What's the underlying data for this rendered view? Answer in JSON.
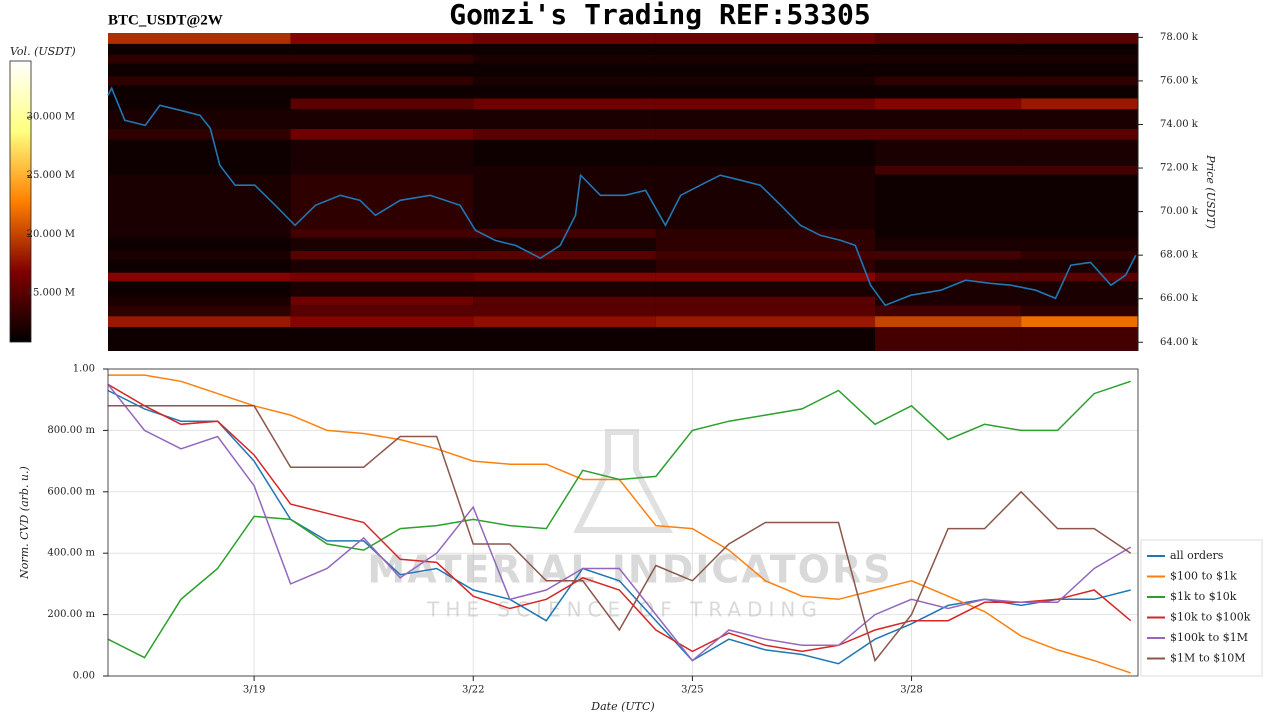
{
  "chart_data": [
    {
      "type": "heatmap",
      "title": "Gomzi's Trading REF:53305",
      "subtitle": "BTC_USDT@2W",
      "colormap": "afmhot",
      "colorbar_label": "Vol. (USDT)",
      "clim": [
        10800000,
        34800000
      ],
      "cticks": [
        {
          "value": 15000000,
          "label": "15.000 M"
        },
        {
          "value": 20000000,
          "label": "20.000 M"
        },
        {
          "value": 25000000,
          "label": "25.000 M"
        },
        {
          "value": 30000000,
          "label": "30.000 M"
        }
      ],
      "y_label": "Price (USDT)",
      "ylim": [
        63600,
        78200
      ],
      "yticks": [
        {
          "value": 64000,
          "label": "64.00 k"
        },
        {
          "value": 66000,
          "label": "66.00 k"
        },
        {
          "value": 68000,
          "label": "68.00 k"
        },
        {
          "value": 70000,
          "label": "70.00 k"
        },
        {
          "value": 72000,
          "label": "72.00 k"
        },
        {
          "value": 74000,
          "label": "74.00 k"
        },
        {
          "value": 76000,
          "label": "76.00 k"
        },
        {
          "value": 78000,
          "label": "78.00 k"
        }
      ],
      "xlim": [
        17,
        31.1
      ],
      "x_bins": [
        17,
        19.5,
        22,
        24.5,
        27.5,
        29.5,
        31.1
      ],
      "y_bins": [
        63600,
        64700,
        65200,
        65700,
        66100,
        66800,
        67200,
        67800,
        68200,
        68800,
        69200,
        71700,
        72100,
        73300,
        73800,
        74700,
        75200,
        75800,
        76200,
        76800,
        77200,
        77700,
        78200
      ],
      "values": [
        [
          11500000,
          11500000,
          11500000,
          11500000,
          14000000,
          14000000
        ],
        [
          18000000,
          17000000,
          17500000,
          18000000,
          20000000,
          22000000
        ],
        [
          13000000,
          15000000,
          15000000,
          15000000,
          14000000,
          13000000
        ],
        [
          12000000,
          16000000,
          15000000,
          15000000,
          12000000,
          12000000
        ],
        [
          11500000,
          12000000,
          12000000,
          12000000,
          12000000,
          12000000
        ],
        [
          17000000,
          16500000,
          17000000,
          17000000,
          15000000,
          15000000
        ],
        [
          11500000,
          12000000,
          12000000,
          13000000,
          12000000,
          12000000
        ],
        [
          12000000,
          15000000,
          15000000,
          14000000,
          14000000,
          13000000
        ],
        [
          11500000,
          12000000,
          12000000,
          13000000,
          12000000,
          12000000
        ],
        [
          12000000,
          14000000,
          14000000,
          13000000,
          11500000,
          11500000
        ],
        [
          12000000,
          13000000,
          12000000,
          12000000,
          11500000,
          11500000
        ],
        [
          11500000,
          12000000,
          12000000,
          12000000,
          14000000,
          14000000
        ],
        [
          11500000,
          12000000,
          11500000,
          11500000,
          12000000,
          12000000
        ],
        [
          13000000,
          16000000,
          15000000,
          15000000,
          15000000,
          15000000
        ],
        [
          12000000,
          12000000,
          12000000,
          12000000,
          12000000,
          12000000
        ],
        [
          11500000,
          15000000,
          16000000,
          16000000,
          17000000,
          18000000
        ],
        [
          11500000,
          11500000,
          11500000,
          11500000,
          11500000,
          11500000
        ],
        [
          13000000,
          13000000,
          12000000,
          12000000,
          13000000,
          13000000
        ],
        [
          11500000,
          11500000,
          11500000,
          11500000,
          11500000,
          11500000
        ],
        [
          13000000,
          13000000,
          12000000,
          12000000,
          12000000,
          12000000
        ],
        [
          11500000,
          11500000,
          11500000,
          11500000,
          11500000,
          11500000
        ],
        [
          19000000,
          17000000,
          16000000,
          16000000,
          15000000,
          15000000
        ]
      ],
      "price": {
        "color": "#1f77b4",
        "x": [
          17.0,
          17.05,
          17.23,
          17.51,
          17.71,
          17.99,
          18.26,
          18.4,
          18.53,
          18.74,
          19.01,
          19.29,
          19.56,
          19.84,
          20.18,
          20.45,
          20.66,
          21.0,
          21.41,
          21.82,
          22.03,
          22.3,
          22.58,
          22.92,
          23.19,
          23.4,
          23.47,
          23.74,
          24.08,
          24.36,
          24.63,
          24.84,
          25.11,
          25.38,
          25.66,
          25.93,
          26.21,
          26.48,
          26.75,
          27.03,
          27.23,
          27.44,
          27.64,
          27.99,
          28.4,
          28.74,
          29.08,
          29.36,
          29.7,
          29.97,
          30.18,
          30.45,
          30.73,
          30.93,
          31.07
        ],
        "values": [
          75340,
          75660,
          74190,
          73960,
          74880,
          74650,
          74420,
          73820,
          72130,
          71210,
          71210,
          70290,
          69370,
          70290,
          70750,
          70520,
          69830,
          70520,
          70750,
          70290,
          69140,
          68680,
          68450,
          67860,
          68450,
          69830,
          71670,
          70750,
          70750,
          70980,
          69370,
          70750,
          71210,
          71670,
          71440,
          71210,
          70290,
          69370,
          68910,
          68680,
          68450,
          66620,
          65700,
          66160,
          66390,
          66850,
          66710,
          66620,
          66390,
          66020,
          67540,
          67670,
          66620,
          67080,
          68000
        ]
      }
    },
    {
      "type": "line",
      "xlabel": "Date (UTC)",
      "ylabel": "Norm. CVD (arb. u.)",
      "grid": true,
      "legend": "right",
      "annotations": [
        "MATERIAL INDICATORS",
        "THE SCIENCE OF TRADING"
      ],
      "xlim": [
        17,
        31.1
      ],
      "xticks": [
        {
          "value": 19,
          "label": "3/19"
        },
        {
          "value": 22,
          "label": "3/22"
        },
        {
          "value": 25,
          "label": "3/25"
        },
        {
          "value": 28,
          "label": "3/28"
        }
      ],
      "ylim": [
        0,
        1
      ],
      "yticks": [
        {
          "value": 0,
          "label": "0.00"
        },
        {
          "value": 0.2,
          "label": "200.00 m"
        },
        {
          "value": 0.4,
          "label": "400.00 m"
        },
        {
          "value": 0.6,
          "label": "600.00 m"
        },
        {
          "value": 0.8,
          "label": "800.00 m"
        },
        {
          "value": 1,
          "label": "1.00"
        }
      ],
      "x": [
        17,
        17.5,
        18,
        18.5,
        19,
        19.5,
        20,
        20.5,
        21,
        21.5,
        22,
        22.5,
        23,
        23.5,
        24,
        24.5,
        25,
        25.5,
        26,
        26.5,
        27,
        27.5,
        28,
        28.5,
        29,
        29.5,
        30,
        30.5,
        31
      ],
      "series": [
        {
          "name": "all orders",
          "color": "#1f77b4",
          "values": [
            0.93,
            0.87,
            0.83,
            0.83,
            0.7,
            0.51,
            0.44,
            0.44,
            0.33,
            0.35,
            0.28,
            0.25,
            0.18,
            0.35,
            0.31,
            0.18,
            0.05,
            0.12,
            0.085,
            0.07,
            0.04,
            0.12,
            0.17,
            0.23,
            0.25,
            0.23,
            0.25,
            0.25,
            0.28
          ]
        },
        {
          "name": "$100 to $1k",
          "color": "#ff7f0e",
          "values": [
            0.98,
            0.98,
            0.96,
            0.92,
            0.88,
            0.85,
            0.8,
            0.79,
            0.77,
            0.74,
            0.7,
            0.69,
            0.69,
            0.64,
            0.64,
            0.49,
            0.48,
            0.41,
            0.31,
            0.26,
            0.25,
            0.28,
            0.31,
            0.26,
            0.21,
            0.13,
            0.085,
            0.05,
            0.01
          ]
        },
        {
          "name": "$1k to $10k",
          "color": "#2ca02c",
          "values": [
            0.12,
            0.06,
            0.25,
            0.35,
            0.52,
            0.51,
            0.43,
            0.41,
            0.48,
            0.49,
            0.51,
            0.49,
            0.48,
            0.67,
            0.64,
            0.65,
            0.8,
            0.83,
            0.85,
            0.87,
            0.93,
            0.82,
            0.88,
            0.77,
            0.82,
            0.8,
            0.8,
            0.92,
            0.96
          ]
        },
        {
          "name": "$10k to $100k",
          "color": "#d62728",
          "values": [
            0.95,
            0.88,
            0.82,
            0.83,
            0.72,
            0.56,
            0.53,
            0.5,
            0.38,
            0.37,
            0.26,
            0.22,
            0.25,
            0.32,
            0.28,
            0.15,
            0.08,
            0.14,
            0.1,
            0.08,
            0.1,
            0.15,
            0.18,
            0.18,
            0.24,
            0.24,
            0.25,
            0.28,
            0.18
          ]
        },
        {
          "name": "$100k to $1M",
          "color": "#9467bd",
          "values": [
            0.95,
            0.8,
            0.74,
            0.78,
            0.62,
            0.3,
            0.35,
            0.45,
            0.32,
            0.4,
            0.55,
            0.25,
            0.28,
            0.35,
            0.35,
            0.2,
            0.05,
            0.15,
            0.12,
            0.1,
            0.1,
            0.2,
            0.25,
            0.22,
            0.25,
            0.24,
            0.24,
            0.35,
            0.42
          ]
        },
        {
          "name": "$1M to $10M",
          "color": "#8c564b",
          "values": [
            0.88,
            0.88,
            0.88,
            0.88,
            0.88,
            0.68,
            0.68,
            0.68,
            0.78,
            0.78,
            0.43,
            0.43,
            0.31,
            0.31,
            0.15,
            0.36,
            0.31,
            0.43,
            0.5,
            0.5,
            0.5,
            0.05,
            0.2,
            0.48,
            0.48,
            0.6,
            0.48,
            0.48,
            0.4
          ]
        }
      ]
    }
  ]
}
